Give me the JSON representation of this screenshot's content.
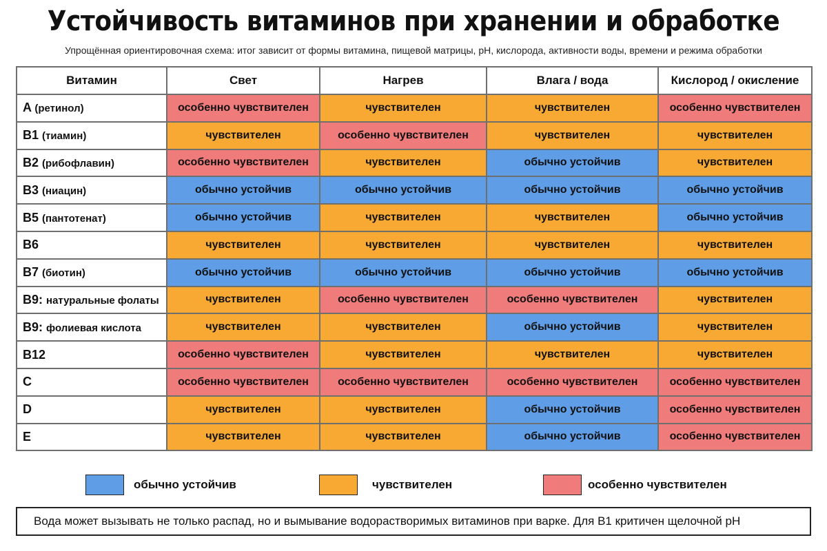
{
  "title": "Устойчивость витаминов при хранении и обработке",
  "subtitle": "Упрощённая ориентировочная схема: итог зависит от формы витамина, пищевой матрицы, pH, кислорода, активности воды, времени и режима обработки",
  "table": {
    "headers": [
      "Витамин",
      "Свет",
      "Нагрев",
      "Влага / вода",
      "Кислород / окисление"
    ],
    "rows": [
      {
        "vitamin": "A",
        "detail": "(ретинол)",
        "cells": [
          "особенно чувствителен",
          "чувствителен",
          "чувствителен",
          "особенно чувствителен"
        ]
      },
      {
        "vitamin": "B1",
        "detail": "(тиамин)",
        "cells": [
          "чувствителен",
          "особенно чувствителен",
          "чувствителен",
          "чувствителен"
        ]
      },
      {
        "vitamin": "B2",
        "detail": "(рибофлавин)",
        "cells": [
          "особенно чувствителен",
          "чувствителен",
          "обычно устойчив",
          "чувствителен"
        ]
      },
      {
        "vitamin": "B3",
        "detail": "(ниацин)",
        "cells": [
          "обычно устойчив",
          "обычно устойчив",
          "обычно устойчив",
          "обычно устойчив"
        ]
      },
      {
        "vitamin": "B5",
        "detail": "(пантотенат)",
        "cells": [
          "обычно устойчив",
          "чувствителен",
          "чувствителен",
          "обычно устойчив"
        ]
      },
      {
        "vitamin": "B6",
        "detail": "",
        "cells": [
          "чувствителен",
          "чувствителен",
          "чувствителен",
          "чувствителен"
        ]
      },
      {
        "vitamin": "B7",
        "detail": "(биотин)",
        "cells": [
          "обычно устойчив",
          "обычно устойчив",
          "обычно устойчив",
          "обычно устойчив"
        ]
      },
      {
        "vitamin": "B9:",
        "detail": "натуральные фолаты",
        "cells": [
          "чувствителен",
          "особенно чувствителен",
          "особенно чувствителен",
          "чувствителен"
        ]
      },
      {
        "vitamin": "B9:",
        "detail": "фолиевая кислота",
        "cells": [
          "чувствителен",
          "чувствителен",
          "обычно устойчив",
          "чувствителен"
        ]
      },
      {
        "vitamin": "B12",
        "detail": "",
        "cells": [
          "особенно чувствителен",
          "чувствителен",
          "чувствителен",
          "чувствителен"
        ]
      },
      {
        "vitamin": "C",
        "detail": "",
        "cells": [
          "особенно чувствителен",
          "особенно чувствителен",
          "особенно чувствителен",
          "особенно чувствителен"
        ]
      },
      {
        "vitamin": "D",
        "detail": "",
        "cells": [
          "чувствителен",
          "чувствителен",
          "обычно устойчив",
          "особенно чувствителен"
        ]
      },
      {
        "vitamin": "E",
        "detail": "",
        "cells": [
          "чувствителен",
          "чувствителен",
          "обычно устойчив",
          "особенно чувствителен"
        ]
      }
    ]
  },
  "levels": {
    "обычно устойчив": {
      "class": "ok",
      "color": "#5f9de6"
    },
    "чувствителен": {
      "class": "sens",
      "color": "#f7a934"
    },
    "особенно чувствителен": {
      "class": "very",
      "color": "#ef7b7b"
    }
  },
  "legend": [
    {
      "label": "обычно устойчив",
      "color": "#5f9de6"
    },
    {
      "label": "чувствителен",
      "color": "#f7a934"
    },
    {
      "label": "особенно чувствителен",
      "color": "#ef7b7b"
    }
  ],
  "note": "Вода может вызывать не только распад, но и вымывание водорастворимых витаминов при варке. Для B1 критичен щелочной pH"
}
